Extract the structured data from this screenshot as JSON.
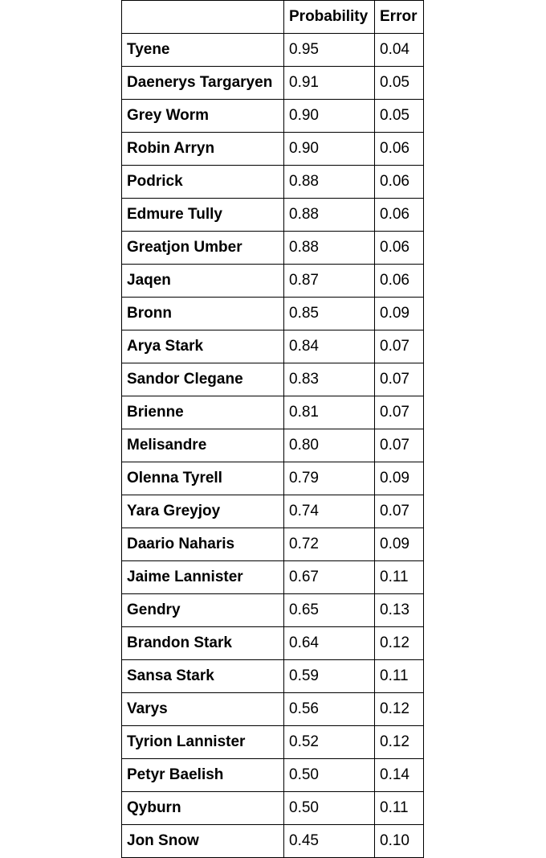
{
  "table": {
    "headers": {
      "name": "",
      "probability": "Probability",
      "error": "Error"
    },
    "rows": [
      {
        "name": "Tyene",
        "probability": "0.95",
        "error": "0.04"
      },
      {
        "name": "Daenerys Targaryen",
        "probability": "0.91",
        "error": "0.05"
      },
      {
        "name": "Grey Worm",
        "probability": "0.90",
        "error": "0.05"
      },
      {
        "name": "Robin Arryn",
        "probability": "0.90",
        "error": "0.06"
      },
      {
        "name": "Podrick",
        "probability": "0.88",
        "error": "0.06"
      },
      {
        "name": "Edmure Tully",
        "probability": "0.88",
        "error": "0.06"
      },
      {
        "name": "Greatjon Umber",
        "probability": "0.88",
        "error": "0.06"
      },
      {
        "name": "Jaqen",
        "probability": "0.87",
        "error": "0.06"
      },
      {
        "name": "Bronn",
        "probability": "0.85",
        "error": "0.09"
      },
      {
        "name": "Arya Stark",
        "probability": "0.84",
        "error": "0.07"
      },
      {
        "name": "Sandor Clegane",
        "probability": "0.83",
        "error": "0.07"
      },
      {
        "name": "Brienne",
        "probability": "0.81",
        "error": "0.07"
      },
      {
        "name": "Melisandre",
        "probability": "0.80",
        "error": "0.07"
      },
      {
        "name": "Olenna Tyrell",
        "probability": "0.79",
        "error": "0.09"
      },
      {
        "name": "Yara Greyjoy",
        "probability": "0.74",
        "error": "0.07"
      },
      {
        "name": "Daario Naharis",
        "probability": "0.72",
        "error": "0.09"
      },
      {
        "name": "Jaime Lannister",
        "probability": "0.67",
        "error": "0.11"
      },
      {
        "name": "Gendry",
        "probability": "0.65",
        "error": "0.13"
      },
      {
        "name": "Brandon Stark",
        "probability": "0.64",
        "error": "0.12"
      },
      {
        "name": "Sansa Stark",
        "probability": "0.59",
        "error": "0.11"
      },
      {
        "name": "Varys",
        "probability": "0.56",
        "error": "0.12"
      },
      {
        "name": "Tyrion Lannister",
        "probability": "0.52",
        "error": "0.12"
      },
      {
        "name": "Petyr Baelish",
        "probability": "0.50",
        "error": "0.14"
      },
      {
        "name": "Qyburn",
        "probability": "0.50",
        "error": "0.11"
      },
      {
        "name": "Jon Snow",
        "probability": "0.45",
        "error": "0.10"
      }
    ]
  }
}
